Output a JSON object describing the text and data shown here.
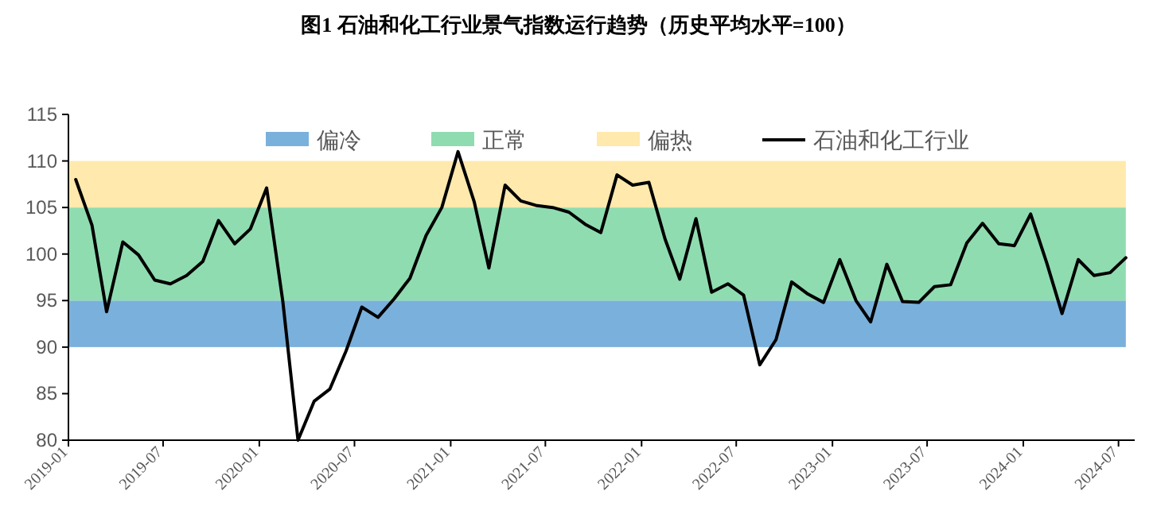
{
  "chart_data": {
    "type": "line",
    "title": "图1 石油和化工行业景气指数运行趋势（历史平均水平=100）",
    "x": [
      "2019-01-15",
      "2019-02-15",
      "2019-03-15",
      "2019-04-15",
      "2019-05-15",
      "2019-06-15",
      "2019-07-15",
      "2019-08-15",
      "2019-09-15",
      "2019-10-15",
      "2019-11-15",
      "2019-12-15",
      "2020-01-15",
      "2020-02-15",
      "2020-03-15",
      "2020-04-15",
      "2020-05-15",
      "2020-06-15",
      "2020-07-15",
      "2020-08-15",
      "2020-09-15",
      "2020-10-15",
      "2020-11-15",
      "2020-12-15",
      "2021-01-15",
      "2021-02-15",
      "2021-03-15",
      "2021-04-15",
      "2021-05-15",
      "2021-06-15",
      "2021-07-15",
      "2021-08-15",
      "2021-09-15",
      "2021-10-15",
      "2021-11-15",
      "2021-12-15",
      "2022-01-15",
      "2022-02-15",
      "2022-03-15",
      "2022-04-15",
      "2022-05-15",
      "2022-06-15",
      "2022-07-15",
      "2022-08-15",
      "2022-09-15",
      "2022-10-15",
      "2022-11-15",
      "2022-12-15",
      "2023-01-15",
      "2023-02-15",
      "2023-03-15",
      "2023-04-15",
      "2023-05-15",
      "2023-06-15",
      "2023-07-15",
      "2023-08-15",
      "2023-09-15",
      "2023-10-15",
      "2023-11-15",
      "2023-12-15",
      "2024-01-15",
      "2024-02-15",
      "2024-03-15",
      "2024-04-15",
      "2024-05-15",
      "2024-06-15",
      "2024-07-15"
    ],
    "series": [
      {
        "name": "石油和化工行业",
        "color": "#000000",
        "values": [
          108.0,
          103.1,
          93.8,
          101.3,
          99.9,
          97.2,
          96.8,
          97.7,
          99.2,
          103.6,
          101.1,
          102.7,
          107.1,
          94.9,
          80,
          84.2,
          85.5,
          89.6,
          94.3,
          93.2,
          95.2,
          97.4,
          102.0,
          105.0,
          111.0,
          105.6,
          98.5,
          107.4,
          105.7,
          105.2,
          105.0,
          104.5,
          103.2,
          102.3,
          108.5,
          107.4,
          107.7,
          101.6,
          97.3,
          103.8,
          95.9,
          96.8,
          95.6,
          88.1,
          90.8,
          97.0,
          95.7,
          94.8,
          99.4,
          95.0,
          92.7,
          98.9,
          94.9,
          94.8,
          96.5,
          96.7,
          101.2,
          103.3,
          101.1,
          100.9,
          104.3,
          99.0,
          93.6,
          99.4,
          97.7,
          98.0,
          99.6
        ]
      }
    ],
    "bands": [
      {
        "axis": "y",
        "from": 90,
        "to": 95,
        "label": "偏冷",
        "color": "#7ab0dc"
      },
      {
        "axis": "y",
        "from": 95,
        "to": 105,
        "label": "正常",
        "color": "#8fdcb0"
      },
      {
        "axis": "y",
        "from": 105,
        "to": 110,
        "label": "偏热",
        "color": "#ffe9ac"
      }
    ],
    "xlim": [
      "2019-01",
      "2024-08"
    ],
    "xticks": [
      "2019-01",
      "2019-07",
      "2020-01",
      "2020-07",
      "2021-01",
      "2021-07",
      "2022-01",
      "2022-07",
      "2023-01",
      "2023-07",
      "2024-01",
      "2024-07"
    ],
    "ylim": [
      80,
      115
    ],
    "yticks": [
      80,
      85,
      90,
      95,
      100,
      105,
      110,
      115
    ],
    "legend": "top",
    "grid": false,
    "marker": "none",
    "line_style": "solid"
  }
}
